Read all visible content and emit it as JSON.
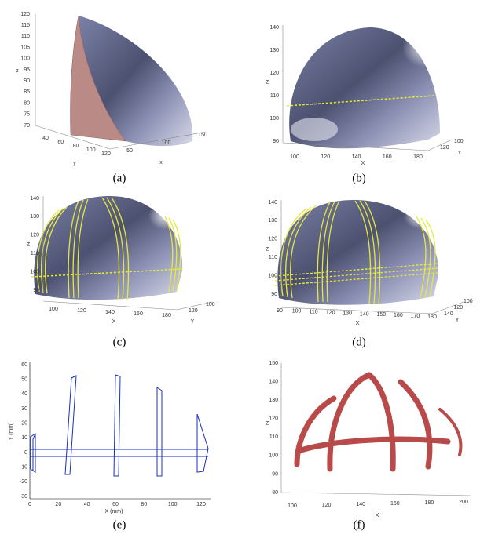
{
  "panels": [
    {
      "caption": "(a)",
      "z_label": "z",
      "x_label": "x",
      "y_label": "y",
      "z_ticks": [
        "70",
        "75",
        "80",
        "85",
        "90",
        "95",
        "100",
        "105",
        "110",
        "115",
        "120"
      ],
      "y_ticks": [
        "40",
        "60",
        "80",
        "100",
        "120"
      ],
      "x_ticks": [
        "50",
        "100",
        "150"
      ]
    },
    {
      "caption": "(b)",
      "z_label": "Z",
      "x_label": "X",
      "y_label": "Y",
      "z_ticks": [
        "90",
        "100",
        "110",
        "120",
        "130",
        "140"
      ],
      "x_ticks": [
        "100",
        "120",
        "140",
        "160",
        "180"
      ],
      "y_ticks": [
        "120",
        "100"
      ]
    },
    {
      "caption": "(c)",
      "z_label": "Z",
      "x_label": "X",
      "y_label": "Y",
      "z_ticks": [
        "90",
        "100",
        "110",
        "120",
        "130",
        "140"
      ],
      "x_ticks": [
        "100",
        "120",
        "140",
        "160",
        "180"
      ],
      "y_ticks": [
        "120",
        "100"
      ]
    },
    {
      "caption": "(d)",
      "z_label": "Z",
      "x_label": "X",
      "y_label": "Y",
      "z_ticks": [
        "90",
        "100",
        "110",
        "120",
        "130",
        "140"
      ],
      "x_ticks": [
        "90",
        "100",
        "110",
        "120",
        "130",
        "140",
        "150",
        "160",
        "170",
        "180"
      ],
      "y_ticks": [
        "140",
        "120",
        "100"
      ]
    },
    {
      "caption": "(e)",
      "z_label": "Y (mm)",
      "x_label": "X (mm)",
      "z_ticks": [
        "-30",
        "-20",
        "-10",
        "0",
        "10",
        "20",
        "30",
        "40",
        "50",
        "60"
      ],
      "x_ticks": [
        "0",
        "20",
        "40",
        "60",
        "80",
        "100",
        "120"
      ]
    },
    {
      "caption": "(f)",
      "z_label": "Z",
      "x_label": "X",
      "z_ticks": [
        "80",
        "90",
        "100",
        "110",
        "120",
        "130",
        "140",
        "150"
      ],
      "x_ticks": [
        "100",
        "120",
        "140",
        "160",
        "180",
        "200"
      ]
    }
  ]
}
